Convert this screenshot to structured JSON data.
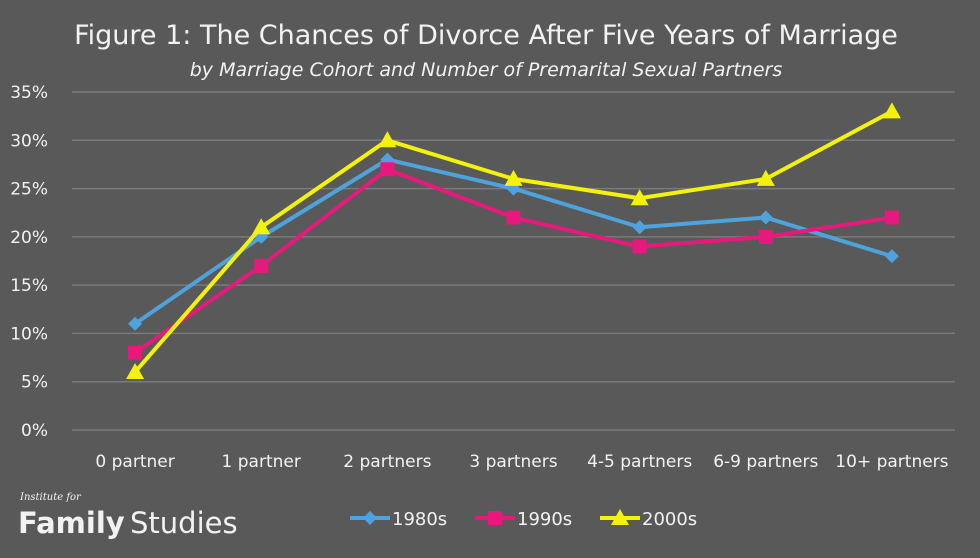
{
  "chart_data": {
    "type": "line",
    "title": "Figure 1: The Chances of Divorce After Five Years of Marriage",
    "subtitle": "by Marriage Cohort and Number of Premarital Sexual Partners",
    "xlabel": "",
    "ylabel": "",
    "categories": [
      "0 partner",
      "1 partner",
      "2 partners",
      "3 partners",
      "4-5 partners",
      "6-9 partners",
      "10+ partners"
    ],
    "ylim": [
      0,
      35
    ],
    "yticks": [
      0,
      5,
      10,
      15,
      20,
      25,
      30,
      35
    ],
    "ytick_suffix": "%",
    "grid": "horizontal",
    "legend_position": "bottom",
    "series": [
      {
        "name": "1980s",
        "color": "#4fa3dc",
        "marker": "diamond",
        "values": [
          11,
          20,
          28,
          25,
          21,
          22,
          18
        ]
      },
      {
        "name": "1990s",
        "color": "#e8197c",
        "marker": "square",
        "values": [
          8,
          17,
          27,
          22,
          19,
          20,
          22
        ]
      },
      {
        "name": "2000s",
        "color": "#f2f20a",
        "marker": "triangle",
        "values": [
          6,
          21,
          30,
          26,
          24,
          26,
          33
        ]
      }
    ]
  },
  "logo": {
    "line1": "Institute for",
    "word1": "Family",
    "word2": "Studies"
  }
}
